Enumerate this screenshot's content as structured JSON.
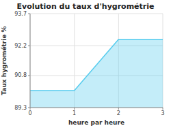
{
  "chart_data": {
    "type": "area",
    "title": "Evolution du taux d'hygrométrie",
    "xlabel": "heure par heure",
    "ylabel": "Taux hygrométrie %",
    "x": [
      0,
      1,
      2,
      3
    ],
    "values": [
      90.1,
      90.1,
      92.5,
      92.5
    ],
    "xlim": [
      0,
      3
    ],
    "ylim": [
      89.3,
      93.7
    ],
    "xticks": [
      0,
      1,
      2,
      3
    ],
    "yticks": [
      89.3,
      90.8,
      92.2,
      93.7
    ],
    "color": "#55ccee",
    "grid": true
  }
}
